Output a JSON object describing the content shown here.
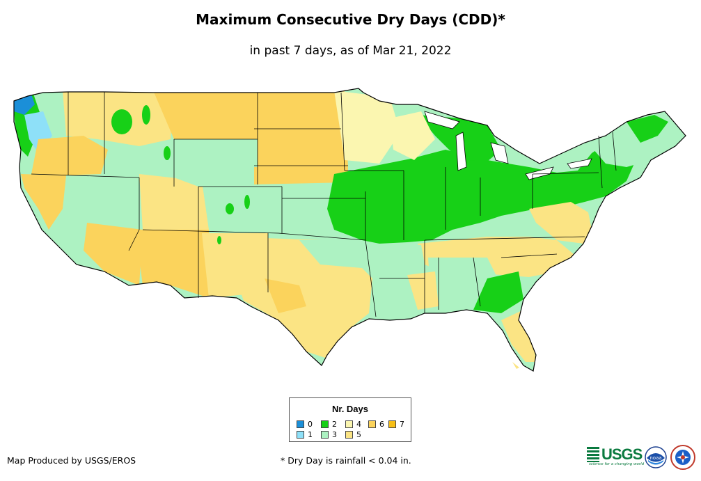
{
  "title": "Maximum Consecutive Dry Days (CDD)*",
  "subtitle": "in past 7 days, as of Mar 21, 2022",
  "legend": {
    "title": "Nr. Days",
    "items": [
      {
        "label": "0",
        "color": "#1b8fd8"
      },
      {
        "label": "1",
        "color": "#8ee0f8"
      },
      {
        "label": "2",
        "color": "#17d017"
      },
      {
        "label": "3",
        "color": "#adf2c2"
      },
      {
        "label": "4",
        "color": "#fbf6b0"
      },
      {
        "label": "5",
        "color": "#fbe484"
      },
      {
        "label": "6",
        "color": "#fbd35c"
      },
      {
        "label": "7",
        "color": "#f7bf16"
      }
    ]
  },
  "credit": "Map Produced by USGS/EROS",
  "footnote": "* Dry Day is rainfall < 0.04 in.",
  "logos": {
    "usgs_text": "USGS",
    "usgs_tagline": "science for a changing world",
    "noaa_text": "noaa"
  },
  "map": {
    "region": "Contiguous United States",
    "regions": [
      {
        "name": "Pacific Northwest coast",
        "days": "0"
      },
      {
        "name": "Western Washington",
        "days": "1"
      },
      {
        "name": "Northern Rockies",
        "days": "6"
      },
      {
        "name": "Great Basin",
        "days": "3"
      },
      {
        "name": "Southwest",
        "days": "6"
      },
      {
        "name": "Northern Plains",
        "days": "6"
      },
      {
        "name": "Central Plains",
        "days": "3"
      },
      {
        "name": "Texas",
        "days": "5"
      },
      {
        "name": "Midwest",
        "days": "2"
      },
      {
        "name": "Northeast",
        "days": "2"
      },
      {
        "name": "Southeast",
        "days": "3"
      },
      {
        "name": "Mid-Atlantic",
        "days": "5"
      },
      {
        "name": "Florida peninsula",
        "days": "5"
      }
    ]
  }
}
